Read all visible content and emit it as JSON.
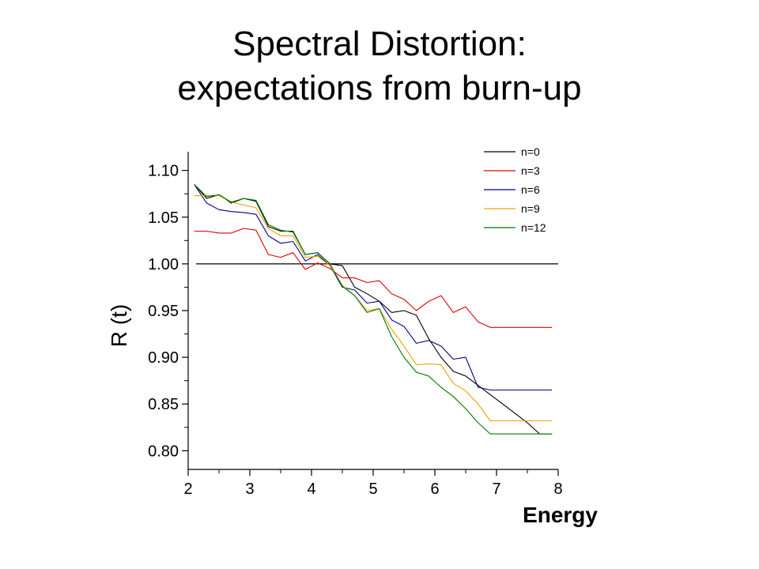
{
  "slide": {
    "title_line1": "Spectral Distortion:",
    "title_line2": "expectations from burn-up"
  },
  "chart_data": {
    "type": "line",
    "title": "",
    "xlabel": "Energy",
    "ylabel": "R (t)",
    "xlim": [
      2,
      8
    ],
    "ylim": [
      0.78,
      1.12
    ],
    "xticks": [
      2,
      3,
      4,
      5,
      6,
      7,
      8
    ],
    "yticks": [
      0.8,
      0.85,
      0.9,
      0.95,
      1.0,
      1.05,
      1.1
    ],
    "ytick_labels": [
      "0.80",
      "0.85",
      "0.90",
      "0.95",
      "1.00",
      "1.05",
      "1.10"
    ],
    "grid": false,
    "legend_position": "top-right",
    "reference_line": {
      "y": 1.0,
      "color": "#000000"
    },
    "x": [
      2.1,
      2.3,
      2.5,
      2.7,
      2.9,
      3.1,
      3.3,
      3.5,
      3.7,
      3.9,
      4.1,
      4.3,
      4.5,
      4.7,
      4.9,
      5.1,
      5.3,
      5.5,
      5.7,
      5.9,
      6.1,
      6.3,
      6.5,
      6.7,
      6.9,
      7.1,
      7.3,
      7.5,
      7.7,
      7.9
    ],
    "series": [
      {
        "name": "n=0",
        "color": "#000000",
        "values": [
          1.085,
          1.07,
          1.074,
          1.065,
          1.07,
          1.067,
          1.04,
          1.035,
          1.035,
          1.01,
          1.012,
          1.0,
          0.998,
          0.975,
          0.968,
          0.96,
          0.948,
          0.95,
          0.945,
          0.92,
          0.9,
          0.885,
          0.88,
          0.87,
          0.86,
          0.85,
          0.84,
          0.83,
          0.818,
          0.818
        ]
      },
      {
        "name": "n=3",
        "color": "#e00000",
        "values": [
          1.035,
          1.035,
          1.033,
          1.033,
          1.038,
          1.036,
          1.01,
          1.007,
          1.012,
          0.994,
          1.001,
          0.995,
          0.985,
          0.985,
          0.98,
          0.982,
          0.968,
          0.962,
          0.95,
          0.96,
          0.966,
          0.948,
          0.954,
          0.938,
          0.932,
          0.932,
          0.932,
          0.932,
          0.932,
          0.932
        ]
      },
      {
        "name": "n=6",
        "color": "#00008b",
        "values": [
          1.085,
          1.065,
          1.058,
          1.056,
          1.055,
          1.053,
          1.03,
          1.022,
          1.024,
          1.003,
          1.01,
          0.998,
          0.975,
          0.972,
          0.958,
          0.96,
          0.94,
          0.933,
          0.915,
          0.918,
          0.912,
          0.898,
          0.9,
          0.868,
          0.865,
          0.865,
          0.865,
          0.865,
          0.865,
          0.865
        ]
      },
      {
        "name": "n=9",
        "color": "#f0a000",
        "values": [
          1.073,
          1.073,
          1.073,
          1.066,
          1.063,
          1.06,
          1.038,
          1.03,
          1.03,
          1.007,
          1.008,
          0.998,
          0.977,
          0.966,
          0.95,
          0.952,
          0.93,
          0.912,
          0.892,
          0.893,
          0.892,
          0.872,
          0.864,
          0.85,
          0.832,
          0.832,
          0.832,
          0.832,
          0.832,
          0.832
        ]
      },
      {
        "name": "n=12",
        "color": "#007a00",
        "values": [
          1.085,
          1.072,
          1.074,
          1.066,
          1.07,
          1.068,
          1.042,
          1.036,
          1.034,
          1.01,
          1.012,
          1.0,
          0.976,
          0.966,
          0.948,
          0.952,
          0.922,
          0.9,
          0.884,
          0.88,
          0.868,
          0.858,
          0.845,
          0.83,
          0.818,
          0.818,
          0.818,
          0.818,
          0.818,
          0.818
        ]
      }
    ]
  }
}
